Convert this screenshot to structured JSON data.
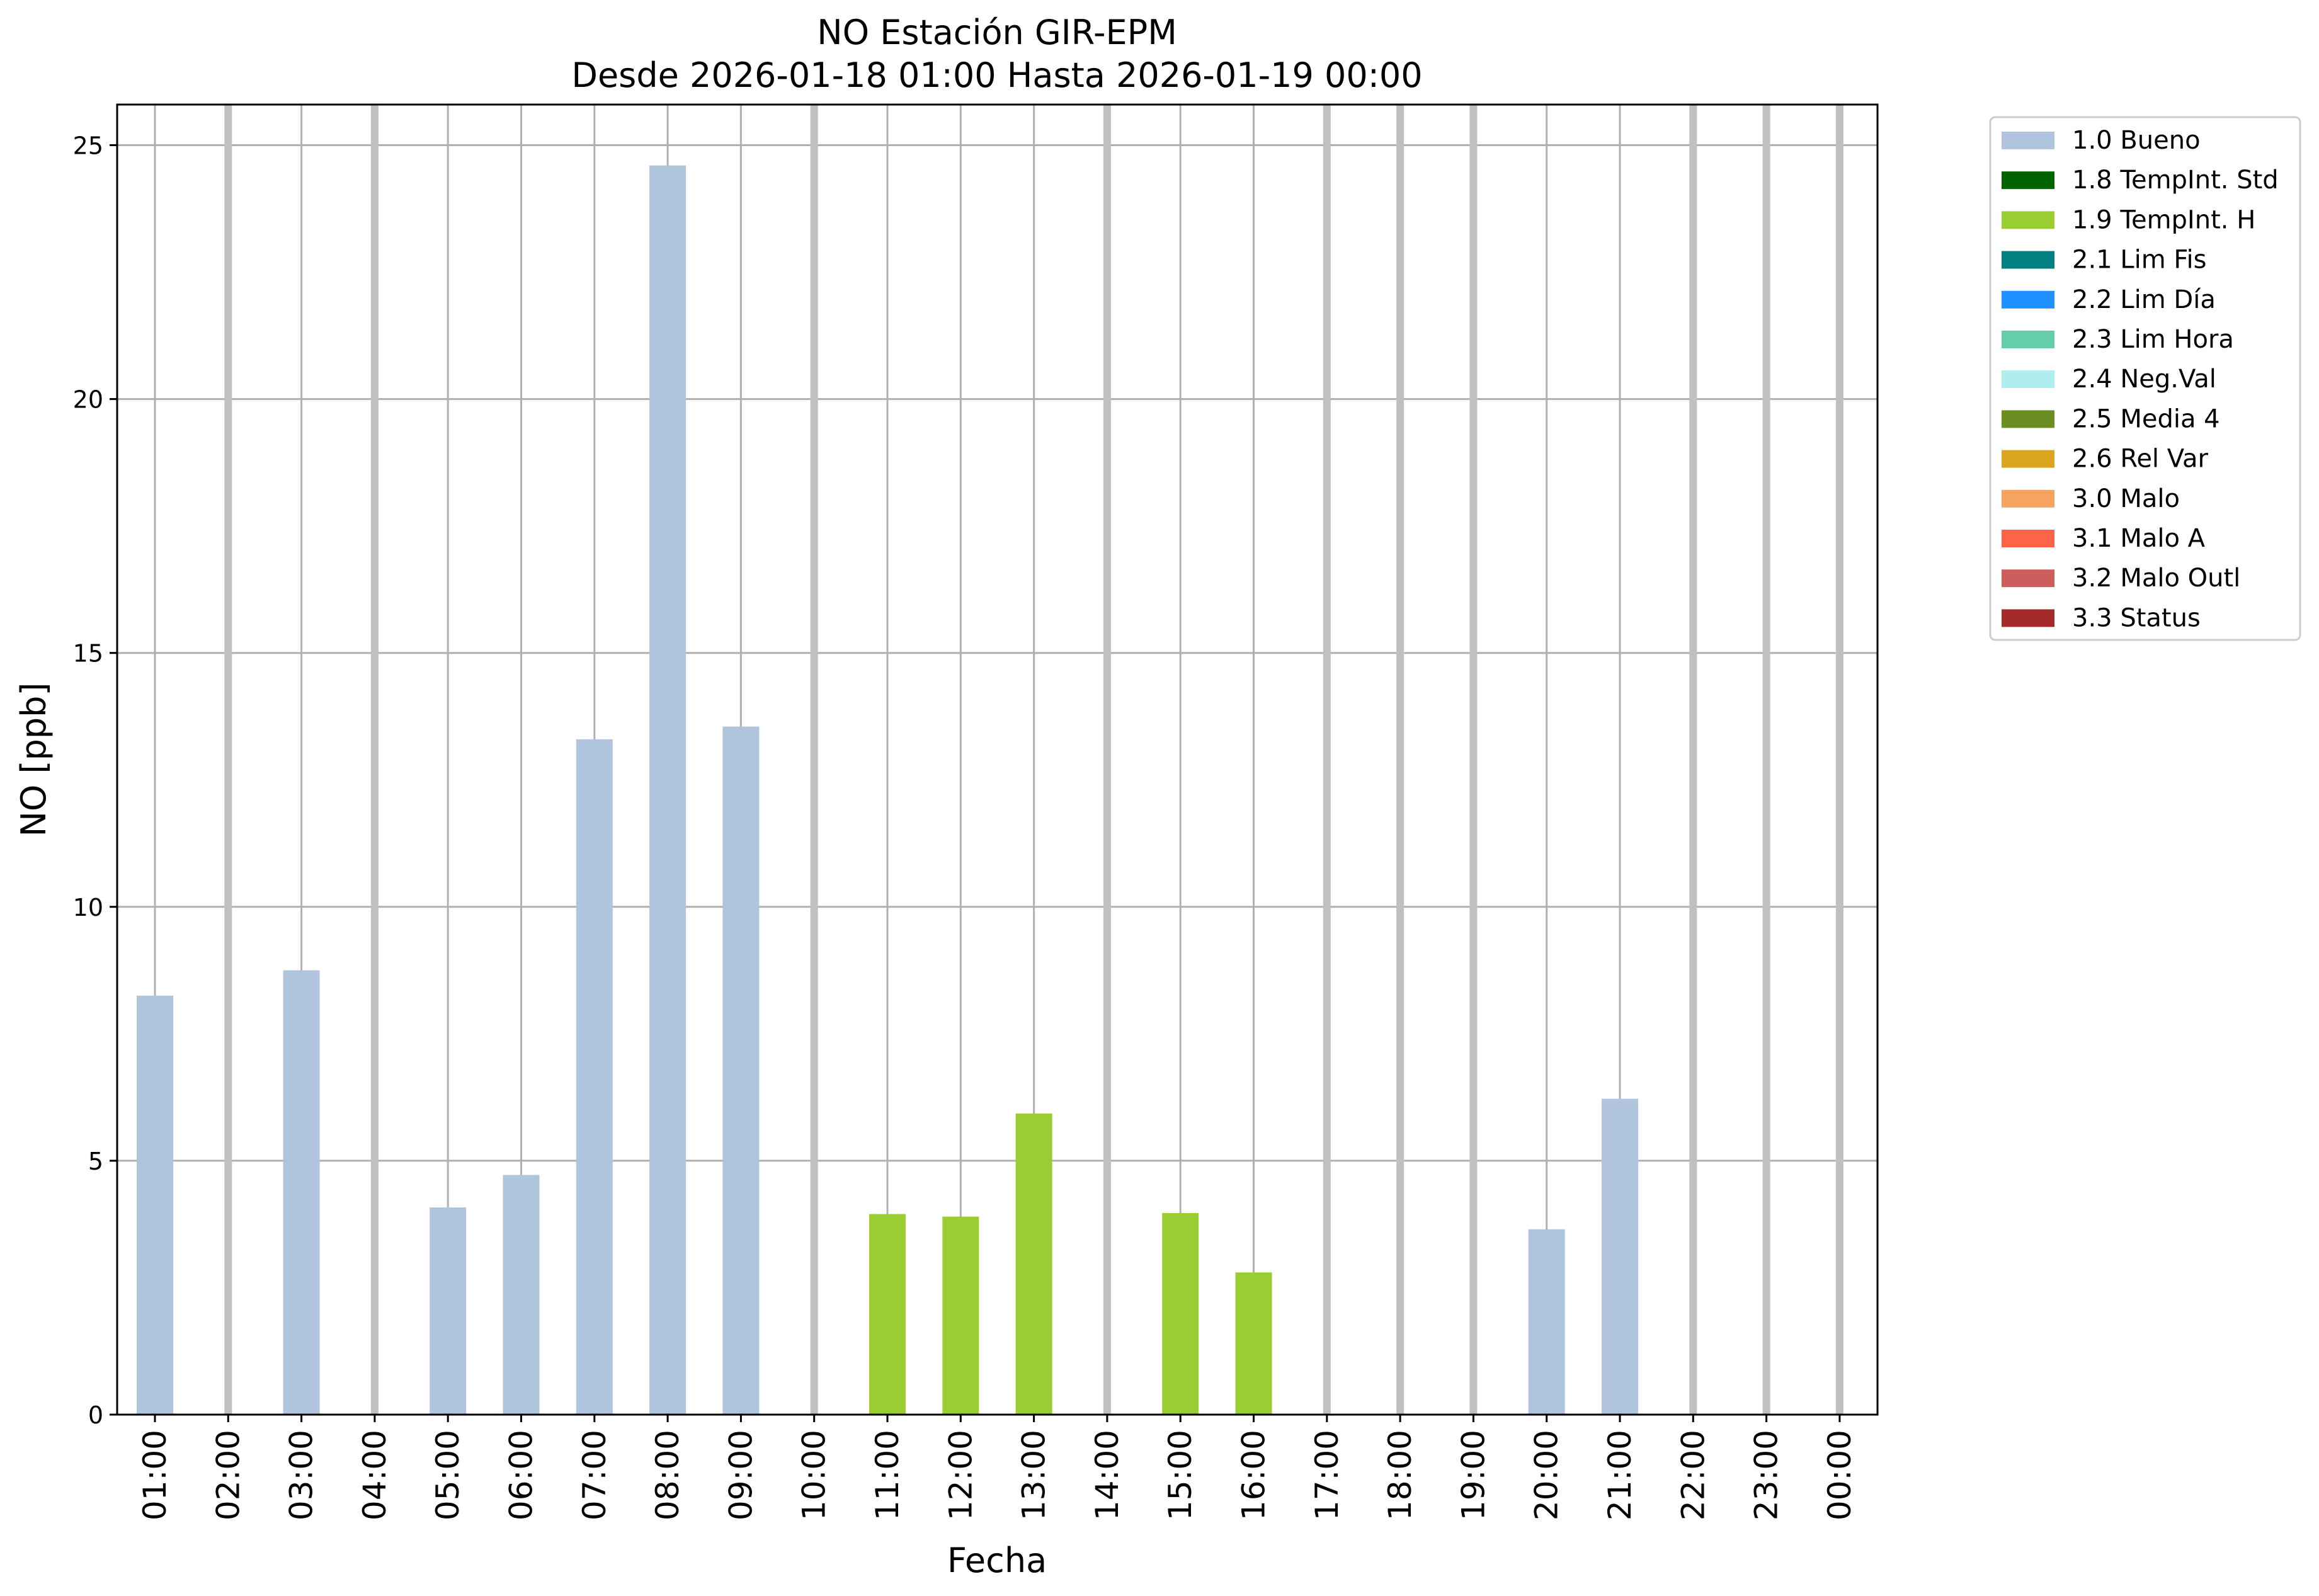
{
  "chart_data": {
    "type": "bar",
    "title_line1": "NO Estación GIR-EPM",
    "title_line2": "Desde 2026-01-18 01:00 Hasta 2026-01-19 00:00",
    "xlabel": "Fecha",
    "ylabel": "NO [ppb]",
    "ylim": [
      0,
      25.8
    ],
    "yticks": [
      0,
      5,
      10,
      15,
      20,
      25
    ],
    "grid": true,
    "legend_position": "outside-top-right",
    "categories": [
      "01:00",
      "02:00",
      "03:00",
      "04:00",
      "05:00",
      "06:00",
      "07:00",
      "08:00",
      "09:00",
      "10:00",
      "11:00",
      "12:00",
      "13:00",
      "14:00",
      "15:00",
      "16:00",
      "17:00",
      "18:00",
      "19:00",
      "20:00",
      "21:00",
      "22:00",
      "23:00",
      "00:00"
    ],
    "values": [
      8.25,
      null,
      8.75,
      null,
      4.08,
      4.72,
      13.3,
      24.6,
      13.55,
      null,
      3.95,
      3.9,
      5.93,
      null,
      3.97,
      2.8,
      null,
      null,
      null,
      3.65,
      6.22,
      null,
      null,
      null
    ],
    "flags": [
      "1.0 Bueno",
      null,
      "1.0 Bueno",
      null,
      "1.0 Bueno",
      "1.0 Bueno",
      "1.0 Bueno",
      "1.0 Bueno",
      "1.0 Bueno",
      null,
      "1.9 TempInt. H",
      "1.9 TempInt. H",
      "1.9 TempInt. H",
      null,
      "1.9 TempInt. H",
      "1.9 TempInt. H",
      null,
      null,
      null,
      "1.0 Bueno",
      "1.0 Bueno",
      null,
      null,
      null
    ],
    "missing_marker_color": "#c0c0c0",
    "legend": [
      {
        "label": "1.0 Bueno",
        "color": "#b0c4de"
      },
      {
        "label": "1.8 TempInt. Std",
        "color": "#006400"
      },
      {
        "label": "1.9 TempInt. H",
        "color": "#9acd32"
      },
      {
        "label": "2.1 Lim Fis",
        "color": "#008080"
      },
      {
        "label": "2.2 Lim Día",
        "color": "#1e90ff"
      },
      {
        "label": "2.3 Lim Hora",
        "color": "#66cdaa"
      },
      {
        "label": "2.4 Neg.Val",
        "color": "#afeeee"
      },
      {
        "label": "2.5 Media 4",
        "color": "#6b8e23"
      },
      {
        "label": "2.6 Rel Var",
        "color": "#daa520"
      },
      {
        "label": "3.0 Malo",
        "color": "#f4a460"
      },
      {
        "label": "3.1 Malo A",
        "color": "#ff6347"
      },
      {
        "label": "3.2 Malo Outl",
        "color": "#cd5c5c"
      },
      {
        "label": "3.3 Status",
        "color": "#a52a2a"
      }
    ]
  }
}
